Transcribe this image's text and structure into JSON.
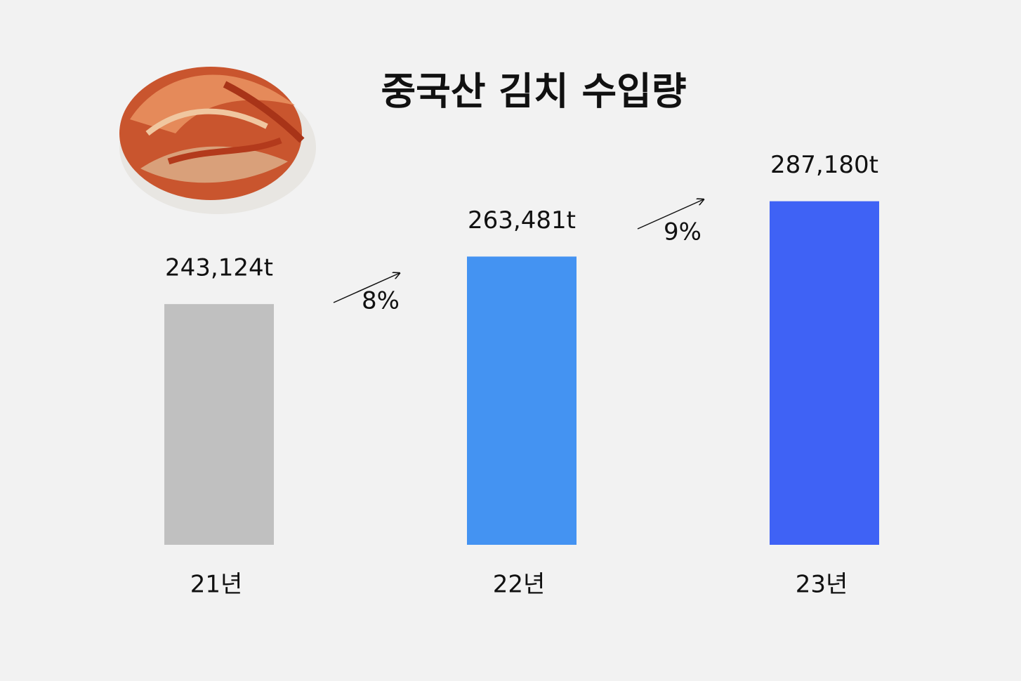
{
  "chart_data": {
    "type": "bar",
    "title": "중국산 김치 수입량",
    "categories": [
      "21년",
      "22년",
      "23년"
    ],
    "values": [
      243124,
      263481,
      287180
    ],
    "value_labels": [
      "243,124t",
      "263,481t",
      "287,180t"
    ],
    "colors": [
      "#c0c0c0",
      "#4493f2",
      "#3f62f5"
    ],
    "annotations": [
      "8%",
      "9%"
    ],
    "ylim": [
      140000,
      300000
    ],
    "grid": false
  }
}
